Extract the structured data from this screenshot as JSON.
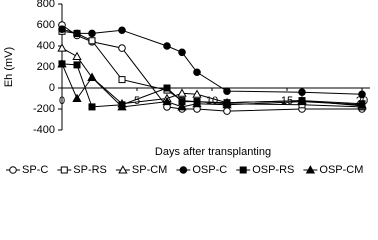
{
  "chart_data": {
    "type": "line",
    "y_label": "Eh (mV)",
    "x_label": "Days after transplanting",
    "x": [
      0,
      1,
      2,
      4,
      7,
      8,
      9,
      11,
      16,
      20
    ],
    "xlim": [
      0,
      20
    ],
    "xticks": [
      0,
      5,
      10,
      15,
      20
    ],
    "ylim": [
      -400,
      800
    ],
    "yticks": [
      -400,
      -200,
      0,
      200,
      400,
      600,
      800
    ],
    "legend": "bottom",
    "series": [
      {
        "name": "SP-C",
        "color": "#000000",
        "marker": "circle",
        "filled": false,
        "values": [
          600,
          500,
          440,
          380,
          -180,
          -200,
          -200,
          -220,
          -200,
          -200
        ]
      },
      {
        "name": "SP-RS",
        "color": "#000000",
        "marker": "square",
        "filled": false,
        "values": [
          540,
          520,
          450,
          80,
          -20,
          -120,
          -130,
          -150,
          -160,
          -180
        ]
      },
      {
        "name": "SP-CM",
        "color": "#000000",
        "marker": "triangle",
        "filled": false,
        "values": [
          380,
          300,
          100,
          -150,
          -100,
          -50,
          -60,
          -140,
          -120,
          -170
        ]
      },
      {
        "name": "OSP-C",
        "color": "#000000",
        "marker": "circle",
        "filled": true,
        "values": [
          560,
          520,
          520,
          550,
          400,
          340,
          150,
          -30,
          -40,
          -60
        ]
      },
      {
        "name": "OSP-RS",
        "color": "#000000",
        "marker": "square",
        "filled": true,
        "values": [
          230,
          220,
          -180,
          -160,
          0,
          -130,
          -130,
          -140,
          -120,
          -150
        ]
      },
      {
        "name": "OSP-CM",
        "color": "#000000",
        "marker": "triangle",
        "filled": true,
        "values": [
          230,
          -100,
          100,
          -180,
          -130,
          -180,
          -150,
          -160,
          -130,
          -160
        ]
      }
    ]
  }
}
